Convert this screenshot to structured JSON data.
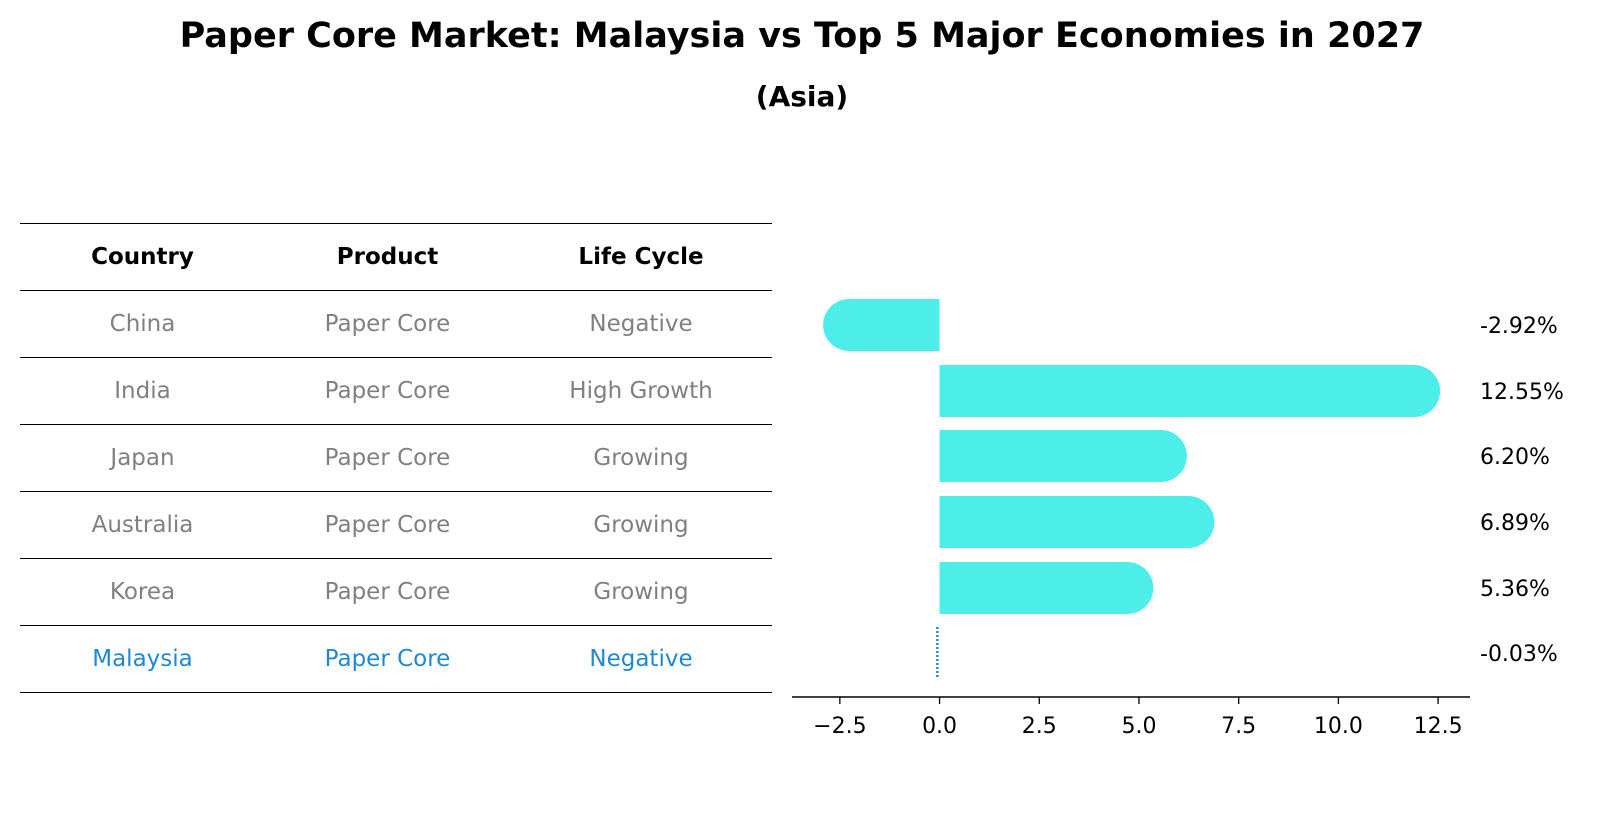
{
  "title": "Paper Core Market: Malaysia vs Top 5 Major Economies in 2027",
  "subtitle": "(Asia)",
  "table": {
    "headers": [
      "Country",
      "Product",
      "Life Cycle"
    ],
    "rows": [
      [
        "China",
        "Paper Core",
        "Negative"
      ],
      [
        "India",
        "Paper Core",
        "High Growth"
      ],
      [
        "Japan",
        "Paper Core",
        "Growing"
      ],
      [
        "Australia",
        "Paper Core",
        "Growing"
      ],
      [
        "Korea",
        "Paper Core",
        "Growing"
      ],
      [
        "Malaysia",
        "Paper Core",
        "Negative"
      ]
    ],
    "highlight_row": 5
  },
  "colors": {
    "bar": "#4deeea",
    "highlight": "#1f88d4",
    "muted_text": "#808080"
  },
  "chart_data": {
    "type": "bar",
    "orientation": "horizontal",
    "categories": [
      "China",
      "India",
      "Japan",
      "Australia",
      "Korea",
      "Malaysia"
    ],
    "values": [
      -2.92,
      12.55,
      6.2,
      6.89,
      5.36,
      -0.03
    ],
    "value_labels": [
      "-2.92%",
      "12.55%",
      "6.20%",
      "6.89%",
      "5.36%",
      "-0.03%"
    ],
    "xticks": [
      -2.5,
      0.0,
      2.5,
      5.0,
      7.5,
      10.0,
      12.5
    ],
    "xtick_labels": [
      "−2.5",
      "0.0",
      "2.5",
      "5.0",
      "7.5",
      "10.0",
      "12.5"
    ],
    "xlim": [
      -3.7,
      13.3
    ],
    "grid": false,
    "legend": "none"
  }
}
